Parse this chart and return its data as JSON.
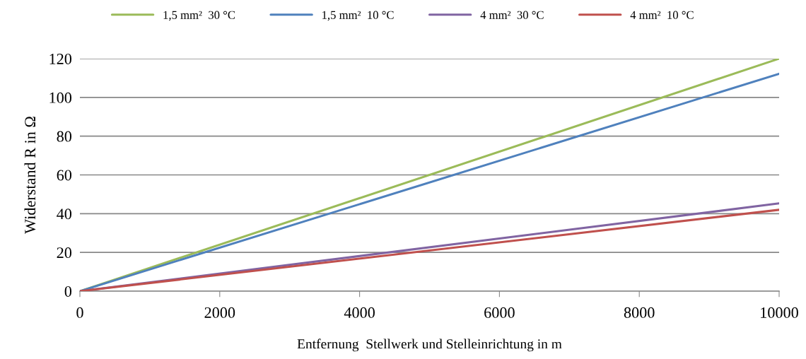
{
  "chart_data": {
    "type": "line",
    "xlabel": "Entfernung  Stellwerk und Stelleinrichtung in m",
    "ylabel": "Widerstand R in Ω",
    "x": [
      0,
      10000
    ],
    "series": [
      {
        "name": "1,5 mm²  30 °C",
        "color": "#9bbb59",
        "values": [
          0,
          120
        ]
      },
      {
        "name": "1,5 mm²  10 °C",
        "color": "#4f81bd",
        "values": [
          0,
          112.2
        ]
      },
      {
        "name": "4 mm²  30 °C",
        "color": "#8064a2",
        "values": [
          0,
          45.3
        ]
      },
      {
        "name": "4 mm²  10 °C",
        "color": "#c0504d",
        "values": [
          0,
          42
        ]
      }
    ],
    "xlim": [
      0,
      10000
    ],
    "xticks": [
      0,
      2000,
      4000,
      6000,
      8000,
      10000
    ],
    "ylim": [
      0,
      120
    ],
    "yticks": [
      0,
      20,
      40,
      60,
      80,
      100,
      120
    ],
    "grid": "y",
    "legend": "top",
    "marker": "none",
    "line_style": "solid"
  }
}
